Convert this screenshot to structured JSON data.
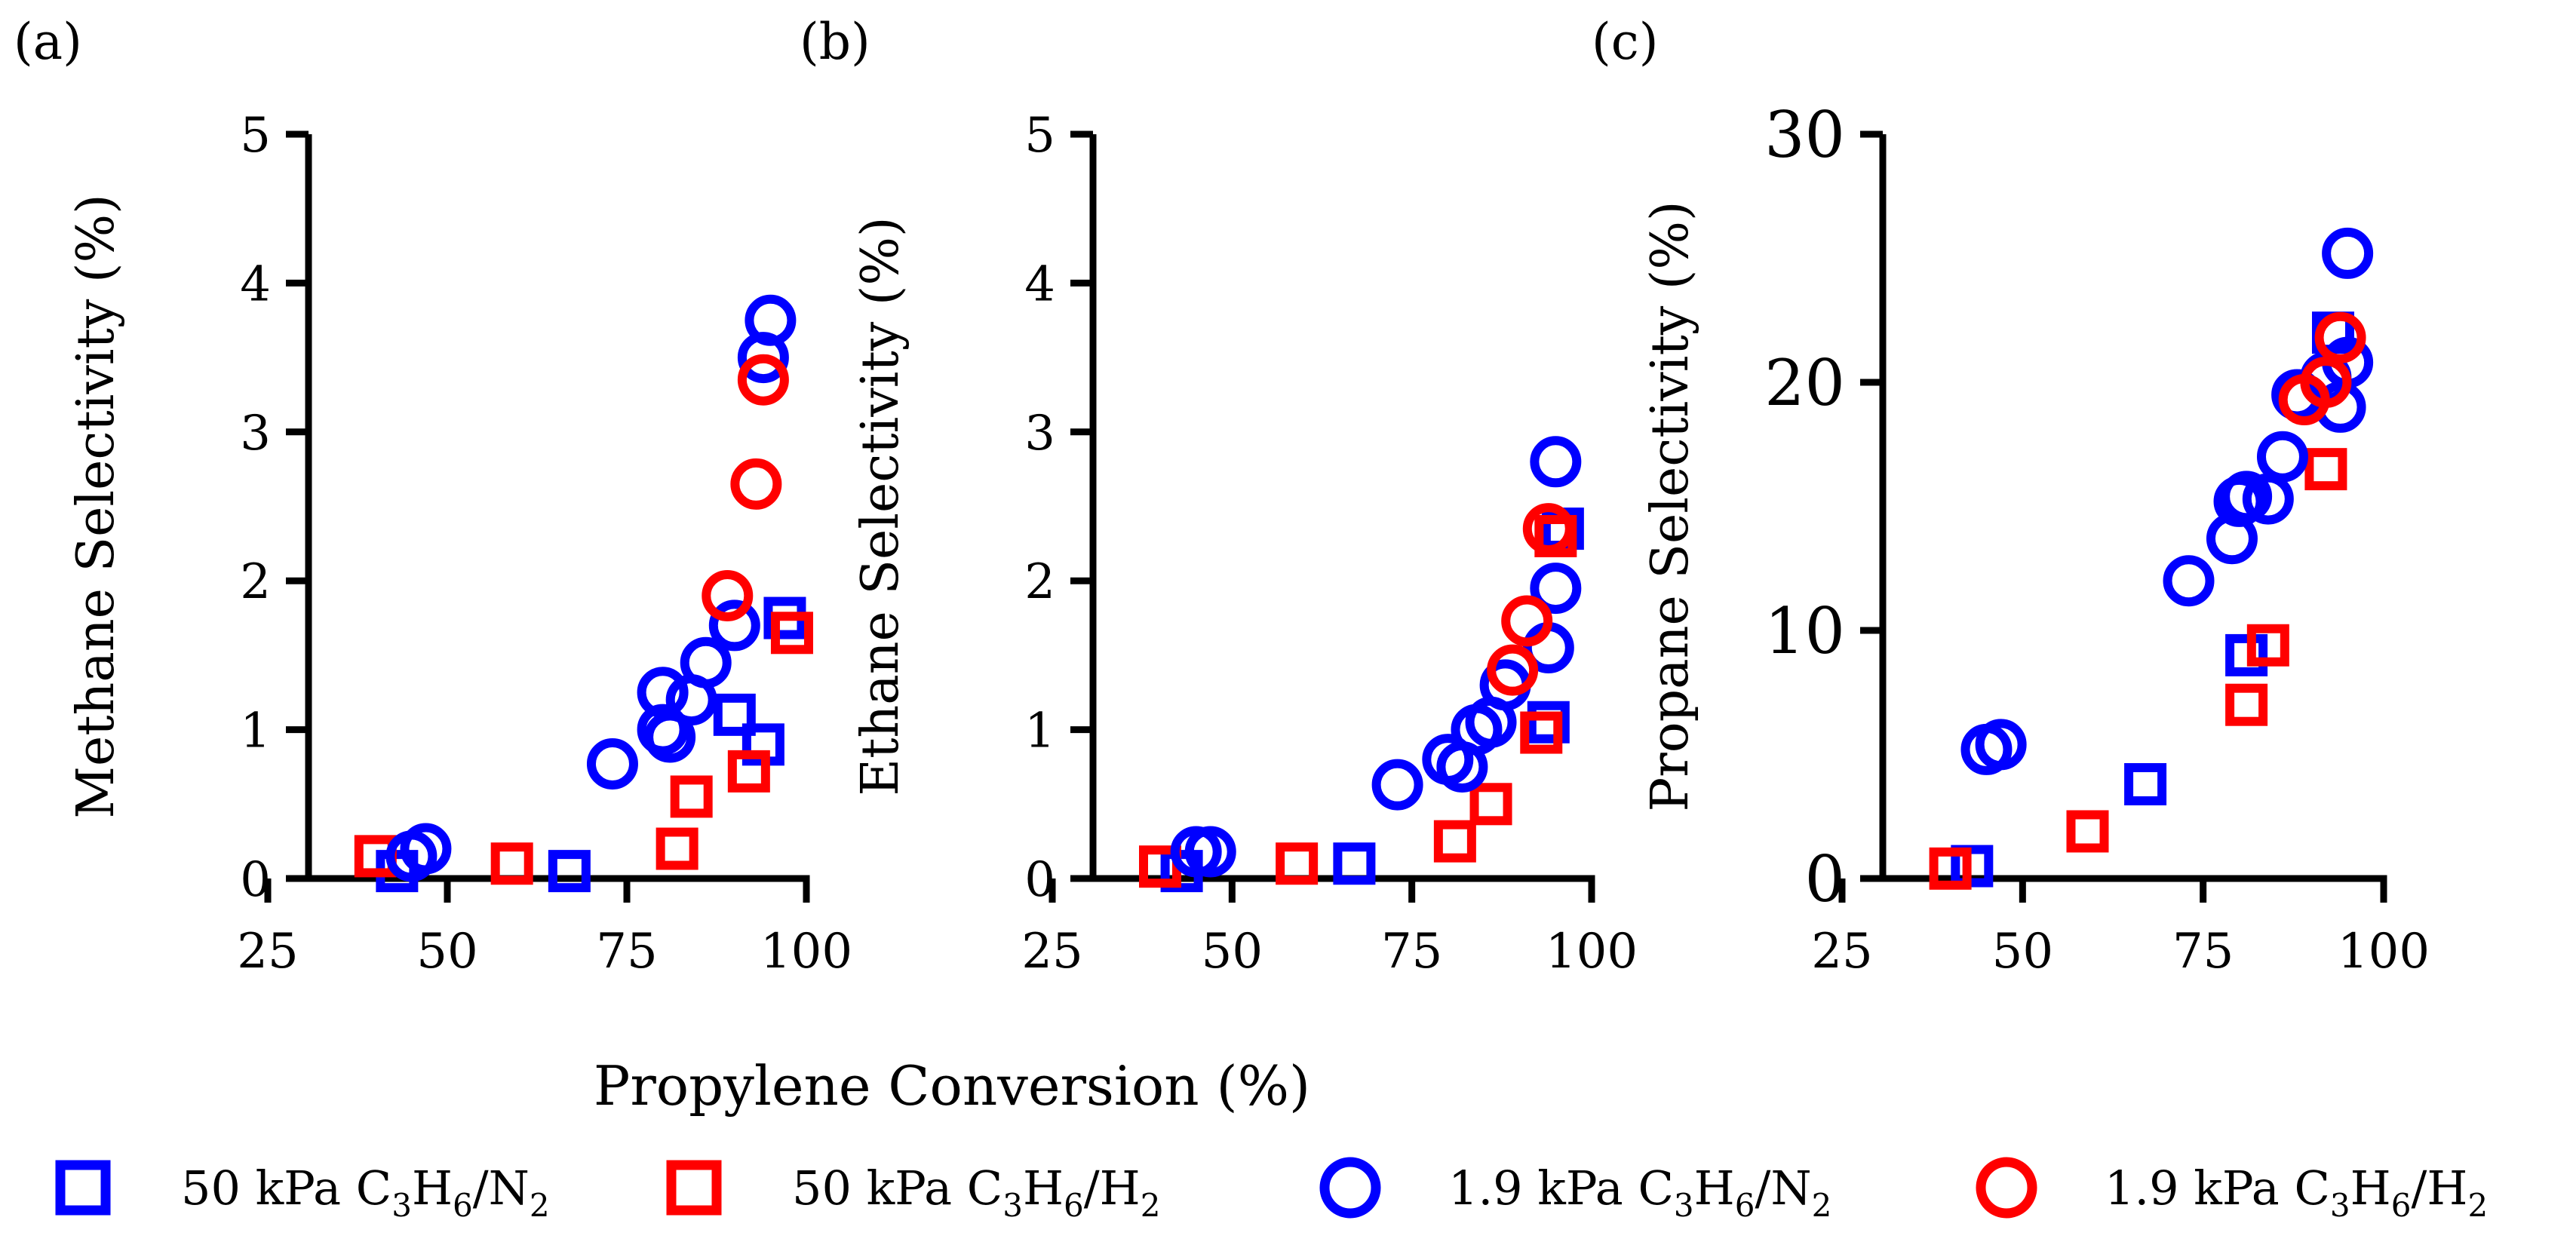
{
  "figure": {
    "shared_xlabel": "Propylene Conversion (%)"
  },
  "chart_data": [
    {
      "type": "scatter",
      "panel_label": "(a)",
      "ylabel": "Methane Selectivity (%)",
      "xlabel": "",
      "xlim": [
        25,
        100
      ],
      "ylim": [
        0,
        5
      ],
      "xticks": [
        "25",
        "50",
        "75",
        "100"
      ],
      "yticks": [
        "0",
        "1",
        "2",
        "3",
        "4",
        "5"
      ],
      "series": [
        {
          "name": "50 kPa C3H6/N2",
          "marker": "square",
          "color": "#0000ff",
          "x": [
            43,
            67,
            90,
            94,
            97
          ],
          "y": [
            0.05,
            0.05,
            1.1,
            0.9,
            1.75
          ]
        },
        {
          "name": "50 kPa C3H6/H2",
          "marker": "square",
          "color": "#ff0000",
          "x": [
            40,
            59,
            82,
            84,
            92,
            98
          ],
          "y": [
            0.15,
            0.1,
            0.2,
            0.55,
            0.72,
            1.65
          ]
        },
        {
          "name": "1.9 kPa C3H6/N2",
          "marker": "circle",
          "color": "#0000ff",
          "x": [
            45,
            47,
            73,
            80,
            80,
            81,
            84,
            86,
            90,
            94,
            95
          ],
          "y": [
            0.15,
            0.2,
            0.77,
            1.0,
            1.25,
            0.95,
            1.2,
            1.45,
            1.7,
            3.5,
            3.75
          ]
        },
        {
          "name": "1.9 kPa C3H6/H2",
          "marker": "circle",
          "color": "#ff0000",
          "x": [
            89,
            93,
            94
          ],
          "y": [
            1.9,
            2.65,
            3.35
          ]
        }
      ]
    },
    {
      "type": "scatter",
      "panel_label": "(b)",
      "ylabel": "Ethane Selectivity (%)",
      "xlabel": "",
      "xlim": [
        25,
        100
      ],
      "ylim": [
        0,
        5
      ],
      "xticks": [
        "25",
        "50",
        "75",
        "100"
      ],
      "yticks": [
        "0",
        "1",
        "2",
        "3",
        "4",
        "5"
      ],
      "series": [
        {
          "name": "50 kPa C3H6/N2",
          "marker": "square",
          "color": "#0000ff",
          "x": [
            43,
            67,
            94,
            96
          ],
          "y": [
            0.05,
            0.1,
            1.05,
            2.35
          ]
        },
        {
          "name": "50 kPa C3H6/H2",
          "marker": "square",
          "color": "#ff0000",
          "x": [
            40,
            59,
            81,
            86,
            93,
            95
          ],
          "y": [
            0.08,
            0.1,
            0.25,
            0.5,
            0.98,
            2.3
          ]
        },
        {
          "name": "1.9 kPa C3H6/N2",
          "marker": "circle",
          "color": "#0000ff",
          "x": [
            45,
            47,
            73,
            80,
            82,
            84,
            86,
            88,
            94,
            95,
            95
          ],
          "y": [
            0.18,
            0.18,
            0.63,
            0.8,
            0.75,
            1.0,
            1.05,
            1.3,
            1.55,
            1.95,
            2.8
          ]
        },
        {
          "name": "1.9 kPa C3H6/H2",
          "marker": "circle",
          "color": "#ff0000",
          "x": [
            89,
            91,
            94
          ],
          "y": [
            1.4,
            1.73,
            2.35
          ]
        }
      ]
    },
    {
      "type": "scatter",
      "panel_label": "(c)",
      "ylabel": "Propane Selectivity (%)",
      "xlabel": "",
      "xlim": [
        25,
        100
      ],
      "ylim": [
        0,
        30
      ],
      "xticks": [
        "25",
        "50",
        "75",
        "100"
      ],
      "yticks": [
        "0",
        "10",
        "20",
        "30"
      ],
      "series": [
        {
          "name": "50 kPa C3H6/N2",
          "marker": "square",
          "color": "#0000ff",
          "x": [
            43,
            67,
            81,
            93
          ],
          "y": [
            0.5,
            3.8,
            9.0,
            22.0
          ]
        },
        {
          "name": "50 kPa C3H6/H2",
          "marker": "square",
          "color": "#ff0000",
          "x": [
            40,
            59,
            81,
            84,
            92
          ],
          "y": [
            0.4,
            1.9,
            7.0,
            9.4,
            16.5
          ]
        },
        {
          "name": "1.9 kPa C3H6/N2",
          "marker": "circle",
          "color": "#0000ff",
          "x": [
            45,
            47,
            73,
            79,
            80,
            81,
            84,
            86,
            88,
            92,
            94,
            95,
            95
          ],
          "y": [
            5.2,
            5.4,
            12.0,
            13.7,
            15.2,
            15.4,
            15.3,
            17.0,
            19.5,
            20.2,
            19.0,
            20.8,
            25.2
          ]
        },
        {
          "name": "1.9 kPa C3H6/H2",
          "marker": "circle",
          "color": "#ff0000",
          "x": [
            89,
            92,
            94
          ],
          "y": [
            19.3,
            20.0,
            21.8
          ]
        }
      ]
    }
  ],
  "legend": {
    "position": "bottom",
    "items": [
      {
        "prefix": "50 kPa C",
        "s1": "3",
        "mid": "H",
        "s2": "6",
        "slash": "/",
        "gas": "N",
        "s3": "2",
        "marker": "square",
        "color": "#0000ff"
      },
      {
        "prefix": "50 kPa C",
        "s1": "3",
        "mid": "H",
        "s2": "6",
        "slash": "/",
        "gas": "H",
        "s3": "2",
        "marker": "square",
        "color": "#ff0000"
      },
      {
        "prefix": "1.9 kPa C",
        "s1": "3",
        "mid": "H",
        "s2": "6",
        "slash": "/",
        "gas": "N",
        "s3": "2",
        "marker": "circle",
        "color": "#0000ff"
      },
      {
        "prefix": "1.9 kPa C",
        "s1": "3",
        "mid": "H",
        "s2": "6",
        "slash": "/",
        "gas": "H",
        "s3": "2",
        "marker": "circle",
        "color": "#ff0000"
      }
    ]
  }
}
